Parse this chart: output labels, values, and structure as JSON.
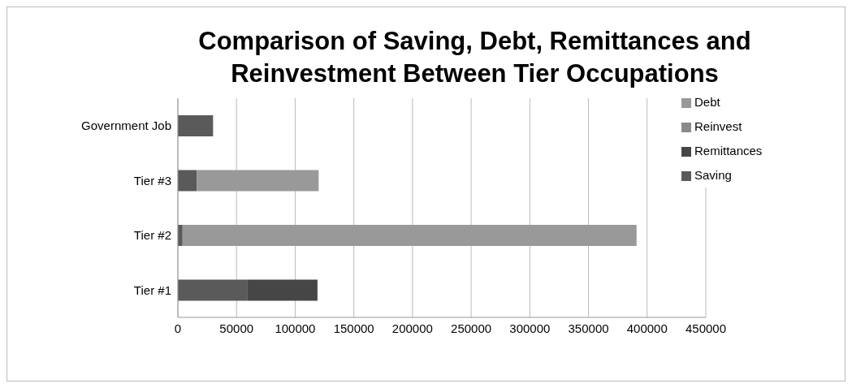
{
  "chart_data": {
    "type": "bar",
    "orientation": "horizontal",
    "stacked": true,
    "title": "Comparison of Saving, Debt, Remittances and Reinvestment Between Tier Occupations",
    "categories": [
      "Government Job",
      "Tier #3",
      "Tier #2",
      "Tier #1"
    ],
    "series": [
      {
        "name": "Saving",
        "color": "#5a5a5a",
        "values": [
          30000,
          16000,
          4000,
          59000
        ]
      },
      {
        "name": "Debt",
        "color": "#999999",
        "values": [
          0,
          104000,
          387000,
          0
        ]
      },
      {
        "name": "Remittances",
        "color": "#464646",
        "values": [
          0,
          0,
          0,
          60000
        ]
      },
      {
        "name": "Reinvest",
        "color": "#8a8a8a",
        "values": [
          0,
          0,
          0,
          0
        ]
      }
    ],
    "xlim": [
      0,
      450000
    ],
    "xticks": [
      0,
      50000,
      100000,
      150000,
      200000,
      250000,
      300000,
      350000,
      400000,
      450000
    ],
    "grid": "x",
    "legend": "top right"
  }
}
